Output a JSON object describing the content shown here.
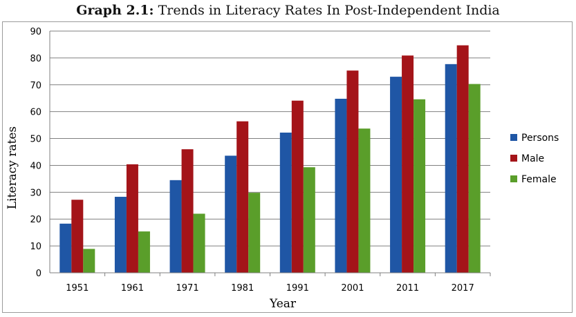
{
  "chart_data": {
    "type": "bar",
    "title_prefix": "Graph 2.1:",
    "title": "Trends in Literacy Rates In Post-Independent India",
    "xlabel": "Year",
    "ylabel": "Literacy rates",
    "categories": [
      "1951",
      "1961",
      "1971",
      "1981",
      "1991",
      "2001",
      "2011",
      "2017"
    ],
    "ylim": [
      0,
      90
    ],
    "yticks": [
      0,
      10,
      20,
      30,
      40,
      50,
      60,
      70,
      80,
      90
    ],
    "grid": true,
    "legend_position": "right",
    "series": [
      {
        "name": "Persons",
        "color": "#1f56a5",
        "values": [
          18.3,
          28.3,
          34.5,
          43.6,
          52.2,
          64.8,
          73.0,
          77.7
        ]
      },
      {
        "name": "Male",
        "color": "#a41419",
        "values": [
          27.2,
          40.4,
          46.0,
          56.4,
          64.1,
          75.3,
          80.9,
          84.7
        ]
      },
      {
        "name": "Female",
        "color": "#5a9e2a",
        "values": [
          8.9,
          15.4,
          22.0,
          29.8,
          39.3,
          53.7,
          64.6,
          70.3
        ]
      }
    ]
  }
}
